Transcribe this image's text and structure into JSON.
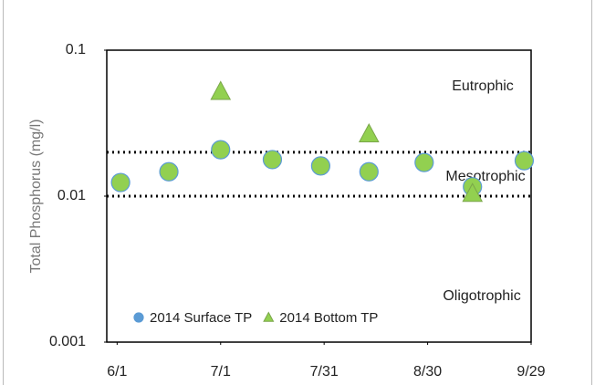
{
  "chart_data": {
    "type": "scatter",
    "y_label": "Total Phosphorus  (mg/l)",
    "x": [
      "6/2",
      "6/16",
      "7/1",
      "7/16",
      "7/30",
      "8/13",
      "8/29",
      "9/12",
      "9/27"
    ],
    "series": [
      {
        "name": "2014 Surface TP",
        "color": "#92d050",
        "marker": "circle",
        "x": [
          "6/2",
          "6/16",
          "7/1",
          "7/16",
          "7/30",
          "8/13",
          "8/29",
          "9/12",
          "9/27"
        ],
        "values": [
          0.0124,
          0.0147,
          0.0208,
          0.0178,
          0.0161,
          0.0147,
          0.017,
          0.0116,
          0.0175
        ]
      },
      {
        "name": "2014 Bottom TP",
        "color": "#92d050",
        "marker": "triangle",
        "x": [
          "7/1",
          "8/13",
          "9/12"
        ],
        "values": [
          0.052,
          0.0266,
          0.0104
        ]
      }
    ],
    "xlim": [
      "5/29",
      "9/29"
    ],
    "xticks": [
      "6/1",
      "7/1",
      "7/31",
      "8/30",
      "9/29"
    ],
    "ylim": [
      0.001,
      0.1
    ],
    "yticks": [
      0.001,
      0.01,
      0.1
    ],
    "log_y": true,
    "reference_lines": [
      0.02,
      0.01
    ],
    "annotations": [
      "Eutrophic",
      "Mesotrophic",
      "Oligotrophic"
    ],
    "legend": "lower left"
  }
}
